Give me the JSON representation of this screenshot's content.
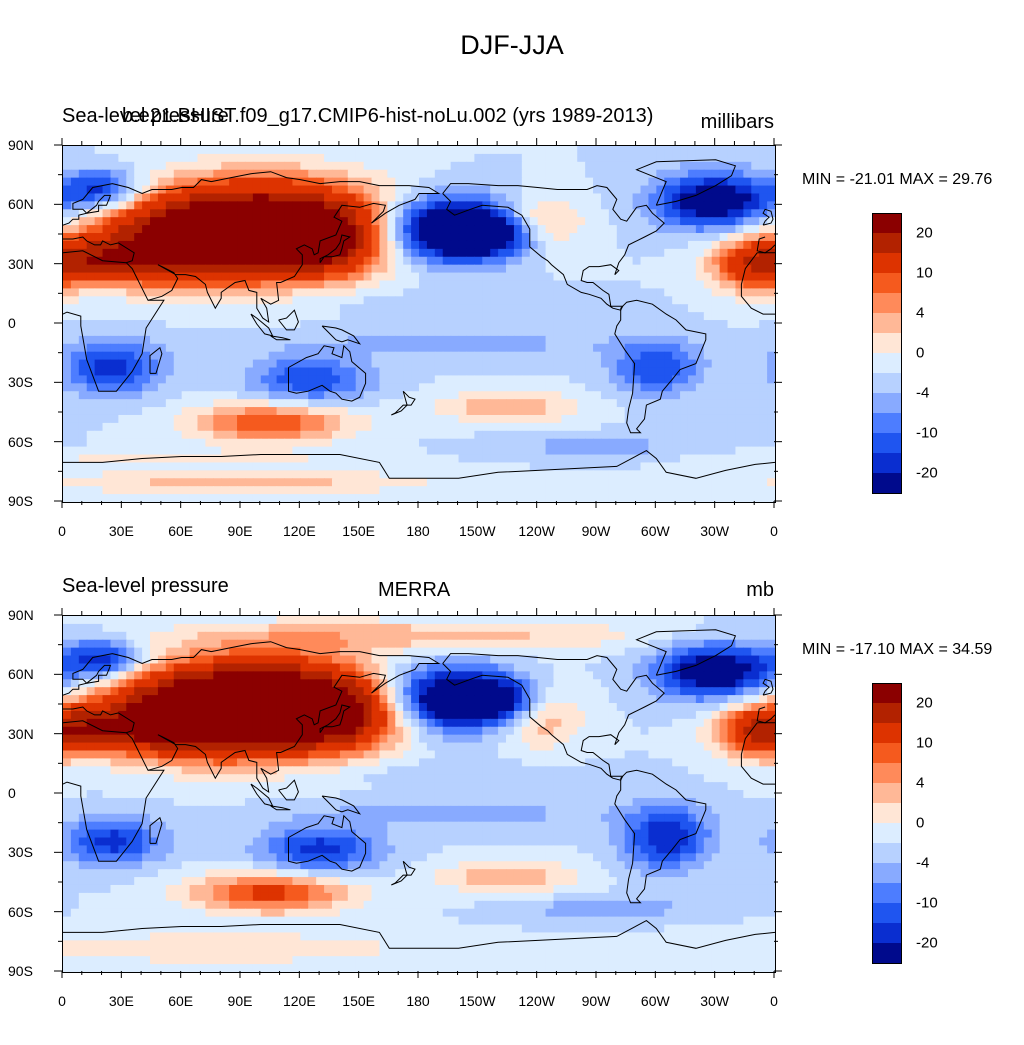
{
  "figure_title": "DJF-JJA",
  "panels": [
    {
      "left_title": "Sea-level pressure",
      "center_title": "b.e21.BHIST.f09_g17.CMIP6-hist-noLu.002 (yrs 1989-2013)",
      "right_title": "millibars",
      "minmax": "MIN = -21.01 MAX =  29.76"
    },
    {
      "left_title": "Sea-level pressure",
      "center_title": "MERRA",
      "right_title": "mb",
      "minmax": "MIN = -17.10 MAX =  34.59"
    }
  ],
  "lat_labels": [
    "90N",
    "60N",
    "30N",
    "0",
    "30S",
    "60S",
    "90S"
  ],
  "lon_labels": [
    "0",
    "30E",
    "60E",
    "90E",
    "120E",
    "150E",
    "180",
    "150W",
    "120W",
    "90W",
    "60W",
    "30W",
    "0"
  ],
  "colorbar": {
    "colors": [
      "#8b0000",
      "#b22200",
      "#dd3300",
      "#f55a1e",
      "#ff8a5a",
      "#ffb897",
      "#ffe6d6",
      "#dcedff",
      "#b7d1ff",
      "#88aaff",
      "#4d7dff",
      "#1f55f0",
      "#0a2ed0",
      "#000a8c"
    ],
    "labels": [
      "20",
      "10",
      "4",
      "0",
      "-4",
      "-10",
      "-20"
    ]
  },
  "chart_data": [
    {
      "type": "heatmap",
      "title": "b.e21.BHIST.f09_g17.CMIP6-hist-noLu.002 (yrs 1989-2013)",
      "variable": "Sea-level pressure",
      "units": "millibars",
      "season": "DJF-JJA",
      "min": -21.01,
      "max": 29.76,
      "x_range": [
        0,
        360
      ],
      "y_range": [
        -90,
        90
      ],
      "contour_levels": [
        -20,
        -15,
        -10,
        -8,
        -6,
        -4,
        -2,
        0,
        2,
        4,
        6,
        8,
        10,
        15,
        20
      ]
    },
    {
      "type": "heatmap",
      "title": "MERRA",
      "variable": "Sea-level pressure",
      "units": "mb",
      "season": "DJF-JJA",
      "min": -17.1,
      "max": 34.59,
      "x_range": [
        0,
        360
      ],
      "y_range": [
        -90,
        90
      ],
      "contour_levels": [
        -20,
        -15,
        -10,
        -8,
        -6,
        -4,
        -2,
        0,
        2,
        4,
        6,
        8,
        10,
        15,
        20
      ]
    }
  ]
}
